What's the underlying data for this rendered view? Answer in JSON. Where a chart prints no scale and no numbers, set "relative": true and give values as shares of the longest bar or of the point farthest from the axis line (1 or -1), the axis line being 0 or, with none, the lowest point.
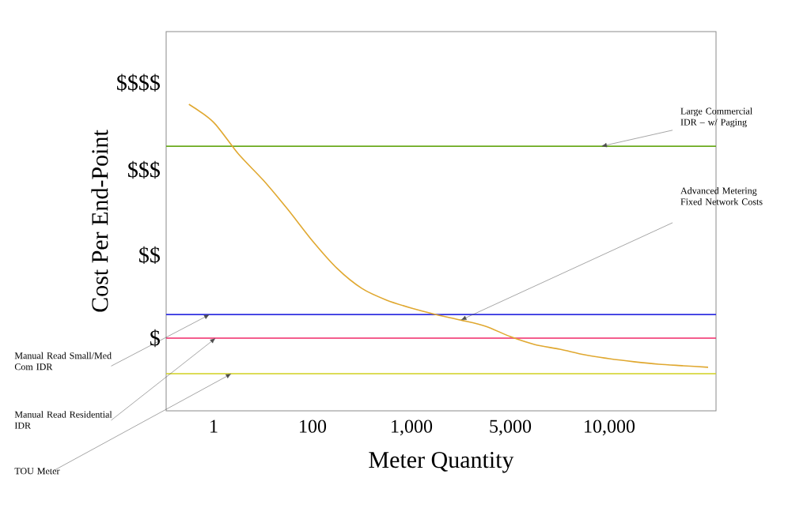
{
  "chart_data": {
    "type": "line",
    "xlabel": "Meter Quantity",
    "ylabel": "Cost Per End-Point",
    "color": "#e0a830",
    "relative": true,
    "categories": [
      null,
      "1",
      null,
      null,
      null,
      "100",
      null,
      null,
      null,
      "1,000",
      null,
      null,
      null,
      "5,000",
      null,
      null,
      null,
      "10,000",
      null,
      null,
      null,
      null
    ],
    "values": [
      1.0,
      0.941,
      0.838,
      0.753,
      0.657,
      0.554,
      0.464,
      0.399,
      0.361,
      0.335,
      0.314,
      0.296,
      0.276,
      0.242,
      0.216,
      0.201,
      0.183,
      0.17,
      0.16,
      0.152,
      0.147,
      0.142
    ],
    "ref_lines": [
      {
        "axis": "y",
        "value": 0.863,
        "label": "Large Commercial IDR – w/ Paging",
        "color": "#6aaa1e"
      },
      {
        "axis": "y",
        "value": 0.314,
        "label": "Manual Read Small/Med Com IDR",
        "color": "#3030e0"
      },
      {
        "axis": "y",
        "value": 0.237,
        "label": "Manual Read Residential IDR",
        "color": "#f02868"
      },
      {
        "axis": "y",
        "value": 0.121,
        "label": "TOU Meter",
        "color": "#d0d020"
      }
    ],
    "annotations": [
      "$",
      "$$",
      "$$$",
      "$$$$",
      "Advanced Metering Fixed Network Costs"
    ]
  }
}
